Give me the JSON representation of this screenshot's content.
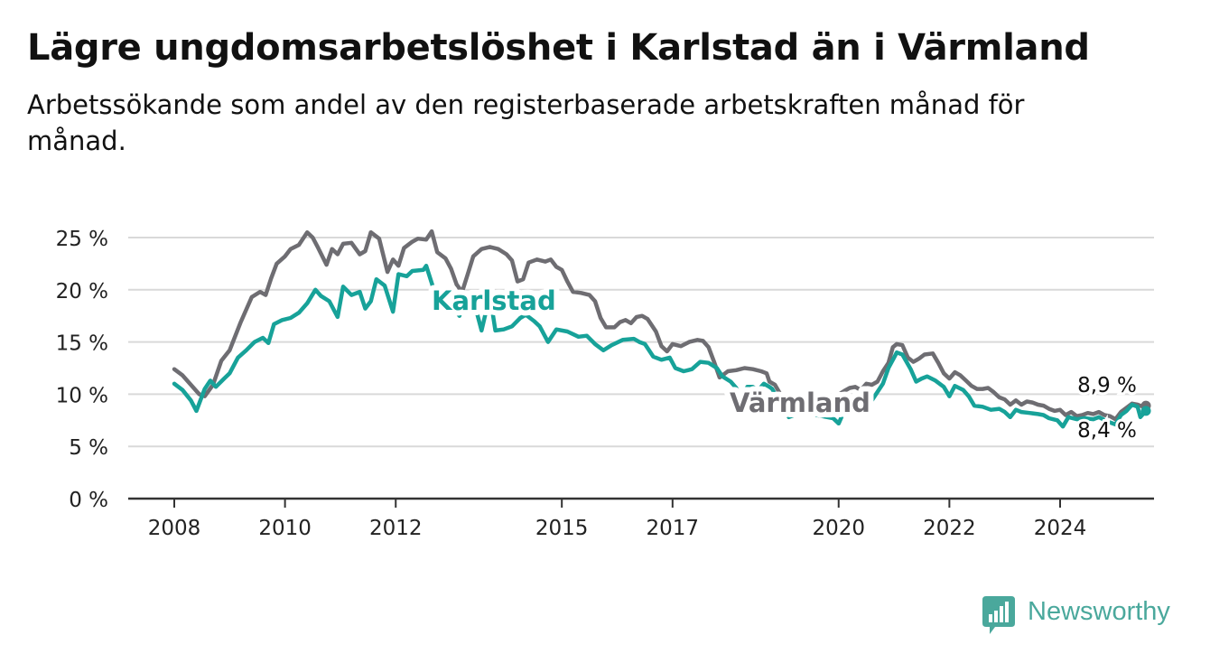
{
  "title": "Lägre ungdomsarbetslöshet i Karlstad än i Värmland",
  "subtitle": "Arbetssökande som andel av den registerbaserade arbetskraften månad för månad.",
  "brand": {
    "name": "Newsworthy",
    "icon": "newsworthy-logo-icon"
  },
  "colors": {
    "karlstad": "#17a299",
    "varmland": "#6e6d72",
    "grid": "#d9d9d9",
    "axis": "#333333",
    "brand": "#4aa89c"
  },
  "chart_data": {
    "type": "line",
    "title": "Lägre ungdomsarbetslöshet i Karlstad än i Värmland",
    "subtitle": "Arbetssökande som andel av den registerbaserade arbetskraften månad för månad.",
    "xlabel": "",
    "ylabel": "",
    "ylim": [
      0,
      25
    ],
    "xlim": [
      2007.6,
      2025.7
    ],
    "yticks": [
      0,
      5,
      10,
      15,
      20,
      25
    ],
    "ytick_labels": [
      "0 %",
      "5 %",
      "10 %",
      "15 %",
      "20 %",
      "25 %"
    ],
    "xticks": [
      2008,
      2010,
      2012,
      2015,
      2017,
      2020,
      2022,
      2024
    ],
    "xtick_labels": [
      "2008",
      "2010",
      "2012",
      "2015",
      "2017",
      "2020",
      "2022",
      "2024"
    ],
    "grid": true,
    "end_labels": [
      "8,9 %",
      "8,4 %"
    ],
    "series": [
      {
        "name": "Värmland",
        "color": "#6e6d72",
        "points": [
          [
            2008.0,
            12.4
          ],
          [
            2008.15,
            11.8
          ],
          [
            2008.3,
            10.9
          ],
          [
            2008.45,
            10.0
          ],
          [
            2008.55,
            9.8
          ],
          [
            2008.7,
            10.9
          ],
          [
            2008.85,
            13.2
          ],
          [
            2009.0,
            14.2
          ],
          [
            2009.2,
            16.9
          ],
          [
            2009.4,
            19.3
          ],
          [
            2009.55,
            19.8
          ],
          [
            2009.65,
            19.5
          ],
          [
            2009.75,
            21.1
          ],
          [
            2009.85,
            22.5
          ],
          [
            2010.0,
            23.2
          ],
          [
            2010.1,
            23.9
          ],
          [
            2010.25,
            24.3
          ],
          [
            2010.4,
            25.5
          ],
          [
            2010.5,
            25.0
          ],
          [
            2010.6,
            24.0
          ],
          [
            2010.75,
            22.4
          ],
          [
            2010.85,
            23.9
          ],
          [
            2010.95,
            23.4
          ],
          [
            2011.05,
            24.4
          ],
          [
            2011.2,
            24.5
          ],
          [
            2011.35,
            23.4
          ],
          [
            2011.45,
            23.7
          ],
          [
            2011.55,
            25.5
          ],
          [
            2011.7,
            24.9
          ],
          [
            2011.85,
            21.7
          ],
          [
            2011.95,
            22.9
          ],
          [
            2012.05,
            22.3
          ],
          [
            2012.15,
            24.0
          ],
          [
            2012.3,
            24.6
          ],
          [
            2012.4,
            24.9
          ],
          [
            2012.55,
            24.8
          ],
          [
            2012.65,
            25.6
          ],
          [
            2012.75,
            23.6
          ],
          [
            2012.9,
            23.0
          ],
          [
            2013.0,
            22.0
          ],
          [
            2013.1,
            20.5
          ],
          [
            2013.2,
            19.8
          ],
          [
            2013.3,
            21.5
          ],
          [
            2013.4,
            23.2
          ],
          [
            2013.55,
            23.9
          ],
          [
            2013.7,
            24.1
          ],
          [
            2013.85,
            23.9
          ],
          [
            2014.0,
            23.4
          ],
          [
            2014.1,
            22.8
          ],
          [
            2014.2,
            20.8
          ],
          [
            2014.3,
            21.0
          ],
          [
            2014.4,
            22.6
          ],
          [
            2014.55,
            22.9
          ],
          [
            2014.7,
            22.7
          ],
          [
            2014.8,
            22.9
          ],
          [
            2014.9,
            22.2
          ],
          [
            2015.0,
            21.9
          ],
          [
            2015.1,
            20.8
          ],
          [
            2015.2,
            19.8
          ],
          [
            2015.35,
            19.7
          ],
          [
            2015.5,
            19.5
          ],
          [
            2015.6,
            18.9
          ],
          [
            2015.7,
            17.3
          ],
          [
            2015.8,
            16.4
          ],
          [
            2015.95,
            16.4
          ],
          [
            2016.05,
            16.9
          ],
          [
            2016.15,
            17.1
          ],
          [
            2016.25,
            16.8
          ],
          [
            2016.35,
            17.4
          ],
          [
            2016.45,
            17.5
          ],
          [
            2016.55,
            17.2
          ],
          [
            2016.7,
            16.0
          ],
          [
            2016.8,
            14.6
          ],
          [
            2016.9,
            14.1
          ],
          [
            2017.0,
            14.8
          ],
          [
            2017.15,
            14.6
          ],
          [
            2017.3,
            15.0
          ],
          [
            2017.45,
            15.2
          ],
          [
            2017.55,
            15.1
          ],
          [
            2017.65,
            14.5
          ],
          [
            2017.75,
            13.1
          ],
          [
            2017.85,
            11.6
          ],
          [
            2018.0,
            12.2
          ],
          [
            2018.15,
            12.3
          ],
          [
            2018.3,
            12.5
          ],
          [
            2018.45,
            12.4
          ],
          [
            2018.6,
            12.2
          ],
          [
            2018.7,
            12.0
          ],
          [
            2018.75,
            11.2
          ],
          [
            2018.85,
            10.9
          ],
          [
            2019.1,
            8.6
          ],
          [
            2019.4,
            8.1
          ],
          [
            2019.6,
            8.4
          ],
          [
            2019.9,
            8.9
          ],
          [
            2019.95,
            9.8
          ],
          [
            2020.1,
            10.3
          ],
          [
            2020.2,
            10.6
          ],
          [
            2020.3,
            10.7
          ],
          [
            2020.4,
            10.4
          ],
          [
            2020.5,
            11.0
          ],
          [
            2020.6,
            10.9
          ],
          [
            2020.7,
            11.2
          ],
          [
            2020.8,
            12.2
          ],
          [
            2020.9,
            13.0
          ],
          [
            2020.98,
            14.5
          ],
          [
            2021.05,
            14.8
          ],
          [
            2021.15,
            14.7
          ],
          [
            2021.25,
            13.5
          ],
          [
            2021.35,
            13.1
          ],
          [
            2021.45,
            13.4
          ],
          [
            2021.55,
            13.8
          ],
          [
            2021.7,
            13.9
          ],
          [
            2021.8,
            13.0
          ],
          [
            2021.9,
            12.0
          ],
          [
            2022.0,
            11.5
          ],
          [
            2022.1,
            12.1
          ],
          [
            2022.2,
            11.8
          ],
          [
            2022.3,
            11.3
          ],
          [
            2022.4,
            10.8
          ],
          [
            2022.5,
            10.5
          ],
          [
            2022.6,
            10.5
          ],
          [
            2022.7,
            10.6
          ],
          [
            2022.8,
            10.2
          ],
          [
            2022.9,
            9.7
          ],
          [
            2023.0,
            9.5
          ],
          [
            2023.1,
            9.0
          ],
          [
            2023.2,
            9.4
          ],
          [
            2023.3,
            9.0
          ],
          [
            2023.4,
            9.3
          ],
          [
            2023.5,
            9.2
          ],
          [
            2023.6,
            9.0
          ],
          [
            2023.7,
            8.9
          ],
          [
            2023.8,
            8.6
          ],
          [
            2023.9,
            8.4
          ],
          [
            2024.0,
            8.5
          ],
          [
            2024.1,
            8.0
          ],
          [
            2024.2,
            8.3
          ],
          [
            2024.3,
            7.9
          ],
          [
            2024.4,
            8.0
          ],
          [
            2024.5,
            8.2
          ],
          [
            2024.6,
            8.1
          ],
          [
            2024.7,
            8.3
          ],
          [
            2024.8,
            8.0
          ],
          [
            2024.9,
            7.9
          ],
          [
            2025.0,
            7.6
          ],
          [
            2025.1,
            8.3
          ],
          [
            2025.2,
            8.7
          ],
          [
            2025.3,
            9.1
          ],
          [
            2025.4,
            9.0
          ],
          [
            2025.5,
            8.8
          ],
          [
            2025.55,
            8.9
          ]
        ]
      },
      {
        "name": "Karlstad",
        "color": "#17a299",
        "points": [
          [
            2008.0,
            11.0
          ],
          [
            2008.15,
            10.4
          ],
          [
            2008.3,
            9.4
          ],
          [
            2008.4,
            8.4
          ],
          [
            2008.55,
            10.5
          ],
          [
            2008.65,
            11.3
          ],
          [
            2008.75,
            10.7
          ],
          [
            2008.9,
            11.5
          ],
          [
            2009.0,
            12.0
          ],
          [
            2009.15,
            13.5
          ],
          [
            2009.3,
            14.2
          ],
          [
            2009.45,
            15.0
          ],
          [
            2009.6,
            15.4
          ],
          [
            2009.7,
            14.9
          ],
          [
            2009.8,
            16.7
          ],
          [
            2009.95,
            17.1
          ],
          [
            2010.1,
            17.3
          ],
          [
            2010.25,
            17.8
          ],
          [
            2010.4,
            18.7
          ],
          [
            2010.55,
            20.0
          ],
          [
            2010.65,
            19.4
          ],
          [
            2010.8,
            18.9
          ],
          [
            2010.95,
            17.4
          ],
          [
            2011.05,
            20.3
          ],
          [
            2011.2,
            19.5
          ],
          [
            2011.35,
            19.8
          ],
          [
            2011.45,
            18.2
          ],
          [
            2011.55,
            18.9
          ],
          [
            2011.65,
            21.0
          ],
          [
            2011.8,
            20.4
          ],
          [
            2011.95,
            17.9
          ],
          [
            2012.05,
            21.5
          ],
          [
            2012.2,
            21.3
          ],
          [
            2012.3,
            21.8
          ],
          [
            2012.5,
            21.9
          ],
          [
            2012.55,
            22.3
          ],
          [
            2012.7,
            19.8
          ],
          [
            2012.85,
            19.2
          ],
          [
            2013.0,
            18.6
          ],
          [
            2013.15,
            17.5
          ],
          [
            2013.25,
            19.6
          ],
          [
            2013.4,
            19.1
          ],
          [
            2013.55,
            16.1
          ],
          [
            2013.7,
            19.5
          ],
          [
            2013.8,
            16.1
          ],
          [
            2013.95,
            16.2
          ],
          [
            2014.1,
            16.5
          ],
          [
            2014.25,
            17.3
          ],
          [
            2014.35,
            17.6
          ],
          [
            2014.5,
            17.0
          ],
          [
            2014.6,
            16.5
          ],
          [
            2014.75,
            15.0
          ],
          [
            2014.9,
            16.2
          ],
          [
            2015.1,
            16.0
          ],
          [
            2015.3,
            15.5
          ],
          [
            2015.45,
            15.6
          ],
          [
            2015.6,
            14.8
          ],
          [
            2015.75,
            14.2
          ],
          [
            2015.9,
            14.7
          ],
          [
            2016.1,
            15.2
          ],
          [
            2016.3,
            15.3
          ],
          [
            2016.4,
            15.0
          ],
          [
            2016.5,
            14.8
          ],
          [
            2016.65,
            13.6
          ],
          [
            2016.8,
            13.3
          ],
          [
            2016.95,
            13.5
          ],
          [
            2017.05,
            12.5
          ],
          [
            2017.2,
            12.2
          ],
          [
            2017.35,
            12.4
          ],
          [
            2017.5,
            13.1
          ],
          [
            2017.65,
            13.0
          ],
          [
            2017.8,
            12.5
          ],
          [
            2017.9,
            11.7
          ],
          [
            2018.05,
            11.2
          ],
          [
            2018.15,
            10.6
          ],
          [
            2018.25,
            9.4
          ],
          [
            2018.35,
            10.7
          ],
          [
            2018.45,
            10.7
          ],
          [
            2018.55,
            10.4
          ],
          [
            2018.65,
            11.0
          ],
          [
            2018.75,
            10.7
          ],
          [
            2018.8,
            10.5
          ],
          [
            2019.1,
            7.8
          ],
          [
            2019.3,
            8.2
          ],
          [
            2019.6,
            8.0
          ],
          [
            2019.9,
            7.7
          ],
          [
            2020.0,
            7.2
          ],
          [
            2020.1,
            8.4
          ],
          [
            2020.5,
            8.6
          ],
          [
            2020.8,
            11.0
          ],
          [
            2020.9,
            12.5
          ],
          [
            2021.0,
            13.5
          ],
          [
            2021.05,
            14.0
          ],
          [
            2021.15,
            13.8
          ],
          [
            2021.3,
            12.4
          ],
          [
            2021.4,
            11.2
          ],
          [
            2021.5,
            11.5
          ],
          [
            2021.6,
            11.7
          ],
          [
            2021.75,
            11.3
          ],
          [
            2021.9,
            10.7
          ],
          [
            2022.0,
            9.8
          ],
          [
            2022.1,
            10.8
          ],
          [
            2022.25,
            10.4
          ],
          [
            2022.35,
            9.8
          ],
          [
            2022.45,
            8.9
          ],
          [
            2022.6,
            8.8
          ],
          [
            2022.75,
            8.5
          ],
          [
            2022.9,
            8.6
          ],
          [
            2023.0,
            8.3
          ],
          [
            2023.1,
            7.8
          ],
          [
            2023.2,
            8.5
          ],
          [
            2023.3,
            8.3
          ],
          [
            2023.45,
            8.2
          ],
          [
            2023.6,
            8.1
          ],
          [
            2023.7,
            8.0
          ],
          [
            2023.8,
            7.7
          ],
          [
            2023.95,
            7.5
          ],
          [
            2024.05,
            6.9
          ],
          [
            2024.15,
            7.8
          ],
          [
            2024.3,
            7.6
          ],
          [
            2024.45,
            7.7
          ],
          [
            2024.6,
            7.6
          ],
          [
            2024.7,
            7.8
          ],
          [
            2024.85,
            7.4
          ],
          [
            2025.0,
            7.1
          ],
          [
            2025.1,
            8.0
          ],
          [
            2025.2,
            8.4
          ],
          [
            2025.3,
            9.0
          ],
          [
            2025.4,
            8.8
          ],
          [
            2025.45,
            7.8
          ],
          [
            2025.55,
            8.4
          ]
        ]
      }
    ]
  }
}
